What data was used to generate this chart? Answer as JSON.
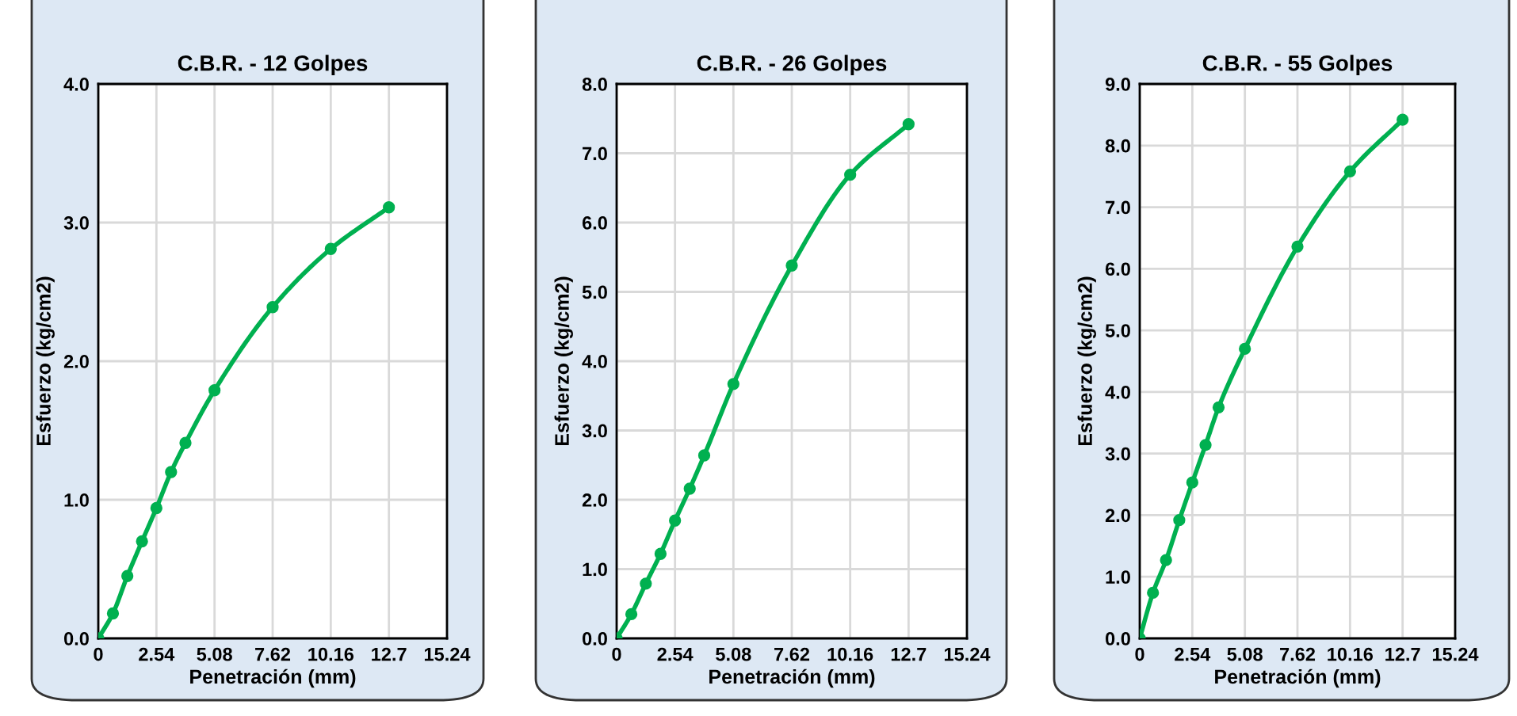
{
  "chart_data": [
    {
      "type": "line",
      "title": "C.B.R. - 12 Golpes",
      "xlabel": "Penetración (mm)",
      "ylabel": "Esfuerzo (kg/cm2)",
      "x": [
        0,
        0.64,
        1.27,
        1.91,
        2.54,
        3.18,
        3.81,
        5.08,
        7.62,
        10.16,
        12.7
      ],
      "series": [
        {
          "color": "#00b050",
          "values": [
            0,
            0.18,
            0.45,
            0.7,
            0.94,
            1.2,
            1.41,
            1.79,
            2.39,
            2.81,
            3.11
          ]
        }
      ],
      "xlim": [
        0,
        15.24
      ],
      "xticks": [
        0,
        2.54,
        5.08,
        7.62,
        10.16,
        12.7,
        15.24
      ],
      "ylim": [
        0,
        4
      ],
      "yticks": [
        {
          "value": 0,
          "label": "0.0"
        },
        {
          "value": 1,
          "label": "1.0"
        },
        {
          "value": 2,
          "label": "2.0"
        },
        {
          "value": 3,
          "label": "3.0"
        },
        {
          "value": 4,
          "label": "4.0"
        }
      ],
      "grid": true,
      "marker": "circle",
      "line_style": "solid"
    },
    {
      "type": "line",
      "title": "C.B.R. - 26 Golpes",
      "xlabel": "Penetración (mm)",
      "ylabel": "Esfuerzo (kg/cm2)",
      "x": [
        0,
        0.64,
        1.27,
        1.91,
        2.54,
        3.18,
        3.81,
        5.08,
        7.62,
        10.16,
        12.7
      ],
      "series": [
        {
          "color": "#00b050",
          "values": [
            0,
            0.35,
            0.79,
            1.22,
            1.7,
            2.16,
            2.64,
            3.67,
            5.38,
            6.69,
            7.42
          ]
        }
      ],
      "xlim": [
        0,
        15.24
      ],
      "xticks": [
        0,
        2.54,
        5.08,
        7.62,
        10.16,
        12.7,
        15.24
      ],
      "ylim": [
        0,
        8
      ],
      "yticks": [
        {
          "value": 0,
          "label": "0.0"
        },
        {
          "value": 1,
          "label": "1.0"
        },
        {
          "value": 2,
          "label": "2.0"
        },
        {
          "value": 3,
          "label": "3.0"
        },
        {
          "value": 4,
          "label": "4.0"
        },
        {
          "value": 5,
          "label": "5.0"
        },
        {
          "value": 6,
          "label": "6.0"
        },
        {
          "value": 7,
          "label": "7.0"
        },
        {
          "value": 8,
          "label": "8.0"
        }
      ],
      "grid": true,
      "marker": "circle",
      "line_style": "solid"
    },
    {
      "type": "line",
      "title": "C.B.R. - 55 Golpes",
      "xlabel": "Penetración (mm)",
      "ylabel": "Esfuerzo (kg/cm2)",
      "x": [
        0,
        0.64,
        1.27,
        1.91,
        2.54,
        3.18,
        3.81,
        5.08,
        7.62,
        10.16,
        12.7
      ],
      "series": [
        {
          "color": "#00b050",
          "values": [
            0,
            0.74,
            1.27,
            1.92,
            2.53,
            3.14,
            3.75,
            4.7,
            6.36,
            7.58,
            8.42
          ]
        }
      ],
      "xlim": [
        0,
        15.24
      ],
      "xticks": [
        0,
        2.54,
        5.08,
        7.62,
        10.16,
        12.7,
        15.24
      ],
      "ylim": [
        0,
        9
      ],
      "yticks": [
        {
          "value": 0,
          "label": "0.0"
        },
        {
          "value": 1,
          "label": "1.0"
        },
        {
          "value": 2,
          "label": "2.0"
        },
        {
          "value": 3,
          "label": "3.0"
        },
        {
          "value": 4,
          "label": "4.0"
        },
        {
          "value": 5,
          "label": "5.0"
        },
        {
          "value": 6,
          "label": "6.0"
        },
        {
          "value": 7,
          "label": "7.0"
        },
        {
          "value": 8,
          "label": "8.0"
        },
        {
          "value": 9,
          "label": "9.0"
        }
      ],
      "grid": true,
      "marker": "circle",
      "line_style": "solid"
    }
  ]
}
